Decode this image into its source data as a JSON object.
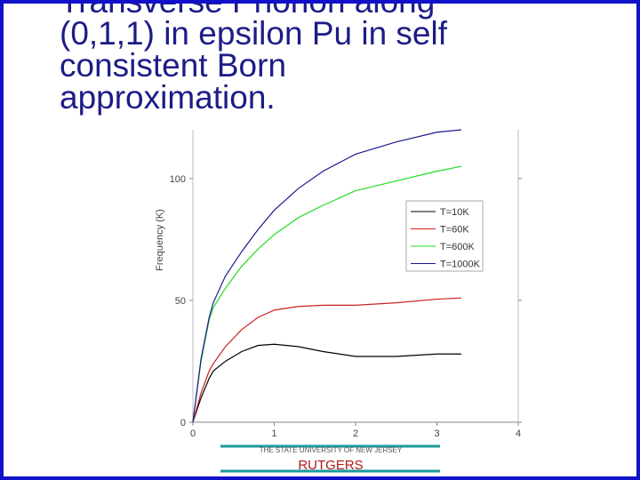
{
  "slide": {
    "title_lines": [
      "Transverse Phonon along",
      "(0,1,1) in epsilon Pu in self",
      "consistent Born",
      "approximation."
    ]
  },
  "chart_data": {
    "type": "line",
    "y_label": "Frequency (K)",
    "x": [
      0,
      0.1,
      0.2,
      0.25,
      0.4,
      0.6,
      0.8,
      1.0,
      1.3,
      1.6,
      2.0,
      2.5,
      3.0,
      3.3
    ],
    "series": [
      {
        "name": "T=10K",
        "color": "#000000",
        "values": [
          0,
          10,
          18,
          21,
          25,
          29,
          31.5,
          32,
          31,
          29,
          27,
          27,
          28,
          28
        ]
      },
      {
        "name": "T=60K",
        "color": "#d02020",
        "values": [
          0,
          12,
          21,
          24,
          31,
          38,
          43,
          46,
          47.5,
          48,
          48,
          49,
          50.5,
          51
        ]
      },
      {
        "name": "T=600K",
        "color": "#22dd22",
        "values": [
          0,
          25,
          42,
          47,
          55,
          64,
          71,
          77,
          84,
          89,
          95,
          99,
          103,
          105
        ]
      },
      {
        "name": "T=1000K",
        "color": "#1a1a90",
        "values": [
          0,
          26,
          43,
          49,
          60,
          70,
          79,
          87,
          96,
          103,
          110,
          115,
          119,
          120
        ]
      }
    ],
    "xlim": [
      0,
      4
    ],
    "ylim": [
      0,
      120
    ],
    "xticks": [
      0,
      1,
      2,
      3,
      4
    ],
    "yticks": [
      0,
      50,
      100
    ],
    "legend": "right"
  },
  "footer": {
    "university": "THE STATE UNIVERSITY OF NEW JERSEY",
    "name": "RUTGERS"
  }
}
